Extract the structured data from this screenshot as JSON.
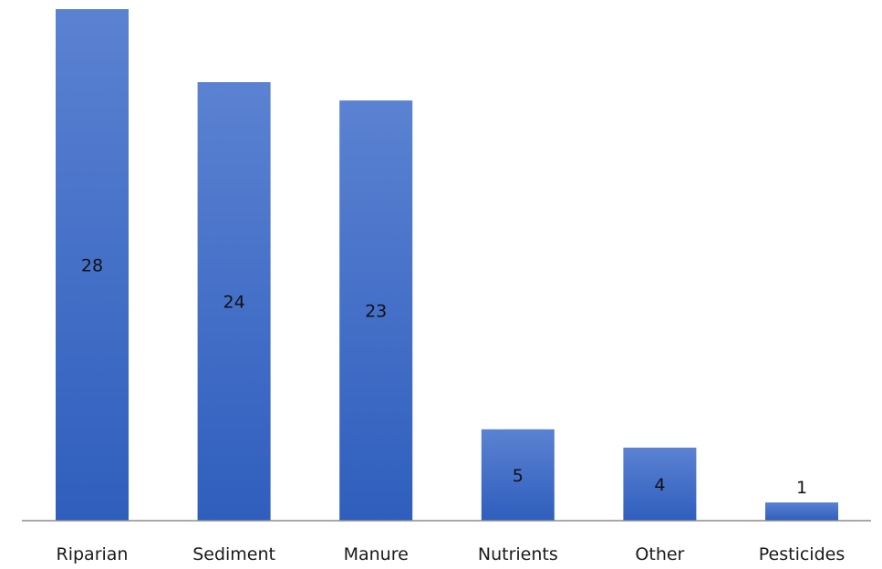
{
  "chart_data": {
    "type": "bar",
    "categories": [
      "Riparian",
      "Sediment",
      "Manure",
      "Nutrients",
      "Other",
      "Pesticides"
    ],
    "values": [
      28,
      24,
      23,
      5,
      4,
      1
    ],
    "data_labels": [
      "28",
      "24",
      "23",
      "5",
      "4",
      "1"
    ],
    "ylim": [
      0,
      28
    ],
    "grid": false,
    "legend": "none",
    "bar_color_top": "#5b82d2",
    "bar_color_bottom": "#2f5ebd",
    "axis_color": "#8c8c8c"
  }
}
